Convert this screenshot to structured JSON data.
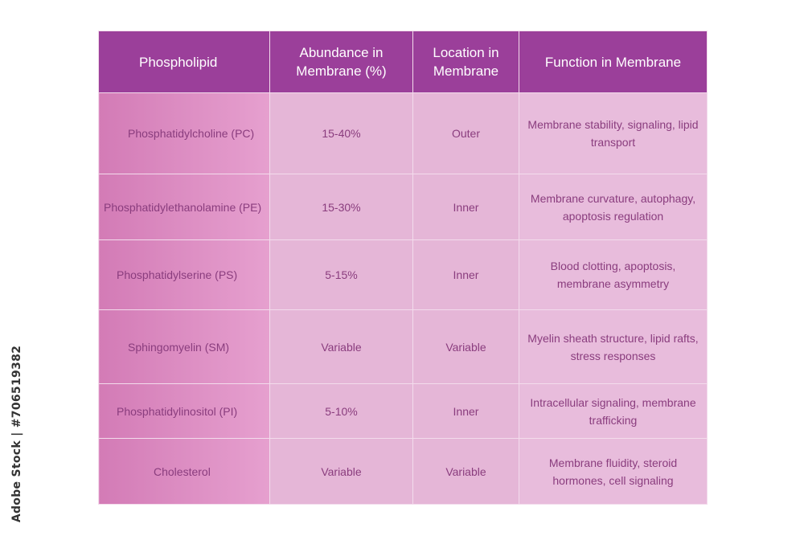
{
  "columns": [
    "Phospholipid",
    "Abundance in Membrane (%)",
    "Location in Membrane",
    "Function in Membrane"
  ],
  "rows": [
    {
      "name": "Phosphatidylcholine (PC)",
      "abundance": "15-40%",
      "location": "Outer",
      "function": "Membrane stability, signaling, lipid transport"
    },
    {
      "name": "Phosphatidylethanolamine (PE)",
      "abundance": "15-30%",
      "location": "Inner",
      "function": "Membrane curvature, autophagy, apoptosis regulation"
    },
    {
      "name": "Phosphatidylserine (PS)",
      "abundance": "5-15%",
      "location": "Inner",
      "function": "Blood clotting, apoptosis, membrane asymmetry"
    },
    {
      "name": "Sphingomyelin (SM)",
      "abundance": "Variable",
      "location": "Variable",
      "function": "Myelin sheath structure, lipid rafts, stress responses"
    },
    {
      "name": "Phosphatidylinositol (PI)",
      "abundance": "5-10%",
      "location": "Inner",
      "function": "Intracellular signaling, membrane trafficking"
    },
    {
      "name": "Cholesterol",
      "abundance": "Variable",
      "location": "Variable",
      "function": "Membrane fluidity, steroid hormones, cell signaling"
    }
  ],
  "stock_id": "Adobe Stock | #706519382",
  "colors": {
    "header_bg": "#9b3f9a",
    "header_text": "#ffffff",
    "name_cell": "#d37bb6",
    "data_cell": "#e5b6d7",
    "body_text": "#8a3d7e"
  }
}
